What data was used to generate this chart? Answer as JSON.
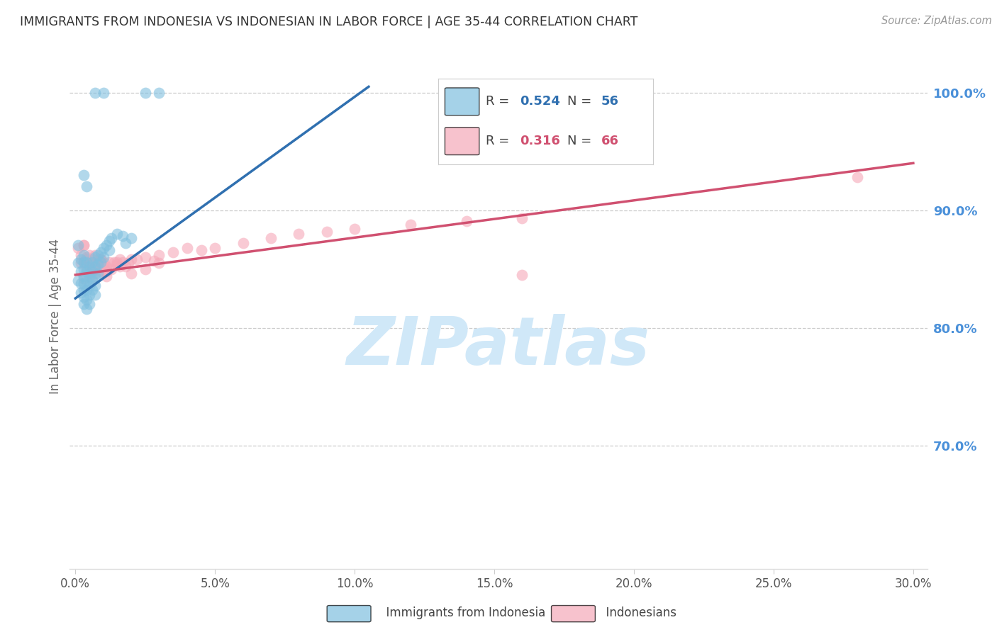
{
  "title": "IMMIGRANTS FROM INDONESIA VS INDONESIAN IN LABOR FORCE | AGE 35-44 CORRELATION CHART",
  "source_text": "Source: ZipAtlas.com",
  "ylabel": "In Labor Force | Age 35-44",
  "xlim": [
    -0.002,
    0.305
  ],
  "ylim": [
    0.595,
    1.025
  ],
  "xtick_vals": [
    0.0,
    0.05,
    0.1,
    0.15,
    0.2,
    0.25,
    0.3
  ],
  "xticklabels": [
    "0.0%",
    "5.0%",
    "10.0%",
    "15.0%",
    "20.0%",
    "25.0%",
    "30.0%"
  ],
  "yticks_right": [
    0.7,
    0.8,
    0.9,
    1.0
  ],
  "yticklabels_right": [
    "70.0%",
    "80.0%",
    "90.0%",
    "100.0%"
  ],
  "blue_label": "Immigrants from Indonesia",
  "pink_label": "Indonesians",
  "blue_R": "0.524",
  "blue_N": "56",
  "pink_R": "0.316",
  "pink_N": "66",
  "blue_color": "#7fbfdf",
  "pink_color": "#f5a8b8",
  "blue_line_color": "#3070b0",
  "pink_line_color": "#d05070",
  "watermark_text": "ZIPatlas",
  "watermark_color": "#d0e8f8",
  "background_color": "#ffffff",
  "grid_color": "#cccccc",
  "title_color": "#333333",
  "right_axis_color": "#4a90d9",
  "blue_x": [
    0.001,
    0.001,
    0.001,
    0.002,
    0.002,
    0.002,
    0.002,
    0.003,
    0.003,
    0.003,
    0.003,
    0.003,
    0.003,
    0.003,
    0.003,
    0.004,
    0.004,
    0.004,
    0.004,
    0.004,
    0.004,
    0.005,
    0.005,
    0.005,
    0.005,
    0.005,
    0.006,
    0.006,
    0.006,
    0.006,
    0.007,
    0.007,
    0.007,
    0.007,
    0.007,
    0.008,
    0.008,
    0.008,
    0.009,
    0.009,
    0.01,
    0.01,
    0.011,
    0.012,
    0.012,
    0.013,
    0.015,
    0.017,
    0.018,
    0.02,
    0.003,
    0.004,
    0.007,
    0.01,
    0.025,
    0.03
  ],
  "blue_y": [
    0.855,
    0.87,
    0.84,
    0.858,
    0.848,
    0.838,
    0.83,
    0.862,
    0.856,
    0.85,
    0.844,
    0.838,
    0.832,
    0.826,
    0.82,
    0.856,
    0.848,
    0.84,
    0.832,
    0.824,
    0.816,
    0.852,
    0.844,
    0.836,
    0.828,
    0.82,
    0.856,
    0.848,
    0.84,
    0.832,
    0.86,
    0.852,
    0.844,
    0.836,
    0.828,
    0.862,
    0.854,
    0.846,
    0.864,
    0.856,
    0.868,
    0.86,
    0.87,
    0.874,
    0.866,
    0.876,
    0.88,
    0.878,
    0.872,
    0.876,
    0.93,
    0.92,
    1.0,
    1.0,
    1.0,
    1.0
  ],
  "pink_x": [
    0.001,
    0.002,
    0.002,
    0.003,
    0.003,
    0.003,
    0.004,
    0.004,
    0.005,
    0.005,
    0.005,
    0.006,
    0.006,
    0.006,
    0.007,
    0.007,
    0.007,
    0.008,
    0.008,
    0.009,
    0.009,
    0.01,
    0.01,
    0.011,
    0.011,
    0.012,
    0.013,
    0.014,
    0.015,
    0.016,
    0.017,
    0.018,
    0.019,
    0.02,
    0.022,
    0.025,
    0.028,
    0.03,
    0.035,
    0.04,
    0.045,
    0.05,
    0.06,
    0.07,
    0.08,
    0.09,
    0.1,
    0.12,
    0.14,
    0.16,
    0.003,
    0.004,
    0.005,
    0.006,
    0.007,
    0.008,
    0.009,
    0.01,
    0.011,
    0.015,
    0.016,
    0.02,
    0.025,
    0.03,
    0.16,
    0.28
  ],
  "pink_y": [
    0.868,
    0.862,
    0.855,
    0.87,
    0.856,
    0.842,
    0.858,
    0.85,
    0.862,
    0.854,
    0.846,
    0.858,
    0.85,
    0.842,
    0.862,
    0.854,
    0.846,
    0.858,
    0.85,
    0.858,
    0.848,
    0.856,
    0.848,
    0.852,
    0.844,
    0.856,
    0.85,
    0.856,
    0.854,
    0.858,
    0.856,
    0.852,
    0.855,
    0.858,
    0.858,
    0.86,
    0.857,
    0.862,
    0.864,
    0.868,
    0.866,
    0.868,
    0.872,
    0.876,
    0.88,
    0.882,
    0.884,
    0.888,
    0.891,
    0.893,
    0.87,
    0.86,
    0.855,
    0.85,
    0.855,
    0.85,
    0.858,
    0.852,
    0.848,
    0.856,
    0.852,
    0.846,
    0.85,
    0.855,
    0.845,
    0.928
  ],
  "blue_line_x": [
    0.0,
    0.105
  ],
  "blue_line_y": [
    0.825,
    1.005
  ],
  "pink_line_x": [
    0.0,
    0.3
  ],
  "pink_line_y": [
    0.845,
    0.94
  ]
}
